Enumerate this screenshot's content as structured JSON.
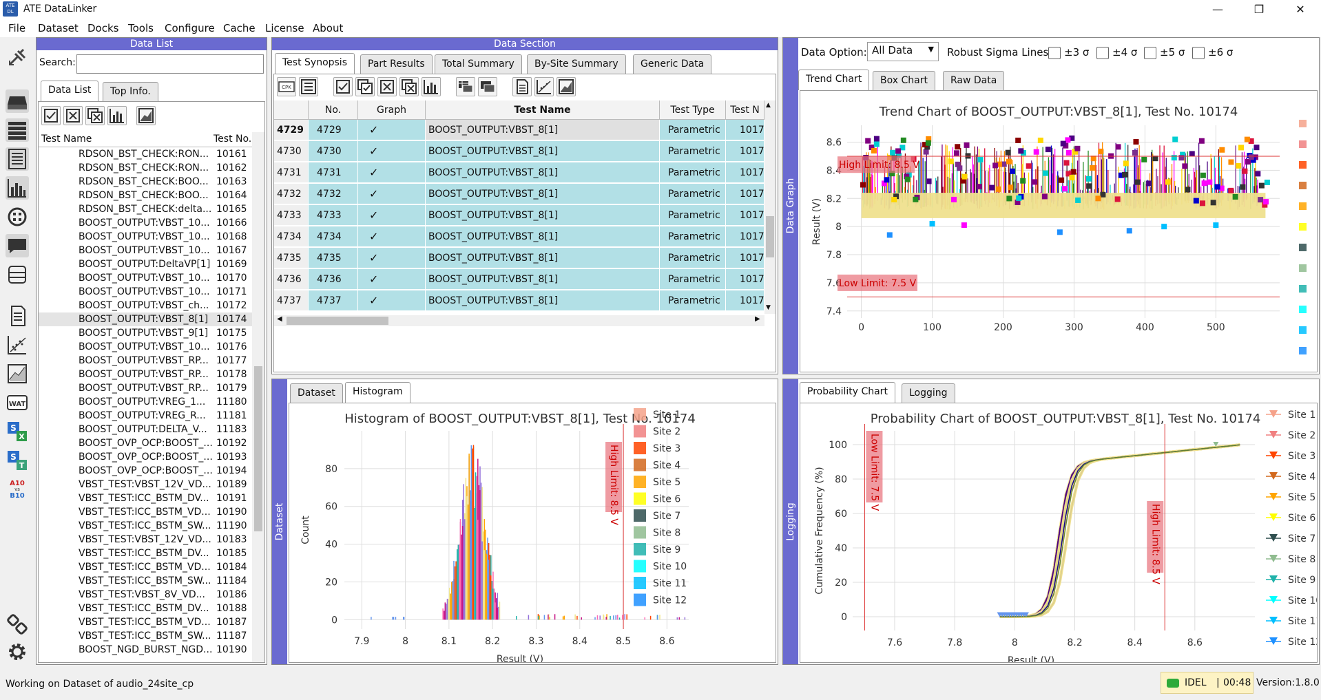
{
  "app": {
    "title": "ATE DataLinker",
    "icon_label": "ATE DL",
    "min_icon": "minimize-icon",
    "max_icon": "maximize-icon",
    "close_icon": "close-icon"
  },
  "menu": [
    "File",
    "Dataset",
    "Docks",
    "Tools",
    "Configure",
    "Cache",
    "License",
    "About"
  ],
  "toolbar_icons": [
    "plug-icon",
    "drive-icon",
    "list-icon",
    "table-icon",
    "bar-chart-icon",
    "globe-icon",
    "chat-icon",
    "wafer-icon",
    "document-icon",
    "scatter-icon",
    "line-chart-icon",
    "wat-icon",
    "sx-icon",
    "st-icon",
    "a10-b10-icon",
    "link-icon",
    "gear-icon"
  ],
  "toolbar_text": {
    "wat": "WAT",
    "sx_s": "S",
    "sx_x": "X",
    "st_s": "S",
    "st_t": "T",
    "a10": "A10",
    "vs": "vs",
    "b10": "B10"
  },
  "data_list": {
    "header": "Data List",
    "search_label": "Search:",
    "search_value": "",
    "tabs": [
      "Data List",
      "Top Info."
    ],
    "col_name": "Test Name",
    "col_no": "Test No.",
    "rows": [
      [
        "RDSON_BST_CHECK:RON...",
        "10161"
      ],
      [
        "RDSON_BST_CHECK:RON...",
        "10162"
      ],
      [
        "RDSON_BST_CHECK:BOO...",
        "10163"
      ],
      [
        "RDSON_BST_CHECK:BOO...",
        "10164"
      ],
      [
        "RDSON_BST_CHECK:delta...",
        "10165"
      ],
      [
        "BOOST_OUTPUT:VBST_10...",
        "10166"
      ],
      [
        "BOOST_OUTPUT:VBST_10...",
        "10168"
      ],
      [
        "BOOST_OUTPUT:VBST_10...",
        "10167"
      ],
      [
        "BOOST_OUTPUT:DeltaVP[1]",
        "10169"
      ],
      [
        "BOOST_OUTPUT:VBST_10...",
        "10170"
      ],
      [
        "BOOST_OUTPUT:VBST_10...",
        "10171"
      ],
      [
        "BOOST_OUTPUT:VBST_ch...",
        "10172"
      ],
      [
        "BOOST_OUTPUT:VBST_8[1]",
        "10174"
      ],
      [
        "BOOST_OUTPUT:VBST_9[1]",
        "10175"
      ],
      [
        "BOOST_OUTPUT:VBST_10...",
        "10176"
      ],
      [
        "BOOST_OUTPUT:VBST_RP...",
        "10177"
      ],
      [
        "BOOST_OUTPUT:VBST_RP...",
        "10178"
      ],
      [
        "BOOST_OUTPUT:VBST_RP...",
        "10179"
      ],
      [
        "BOOST_OUTPUT:VREG_1...",
        "11180"
      ],
      [
        "BOOST_OUTPUT:VREG_R...",
        "11181"
      ],
      [
        "BOOST_OUTPUT:DELTA_V...",
        "11183"
      ],
      [
        "BOOST_OVP_OCP:BOOST_...",
        "10192"
      ],
      [
        "BOOST_OVP_OCP:BOOST_...",
        "10193"
      ],
      [
        "BOOST_OVP_OCP:BOOST_...",
        "10194"
      ],
      [
        "VBST_TEST:VBST_12V_VD...",
        "10189"
      ],
      [
        "VBST_TEST:ICC_BSTM_DV...",
        "10191"
      ],
      [
        "VBST_TEST:ICC_BSTM_VD...",
        "10190"
      ],
      [
        "VBST_TEST:ICC_BSTM_SW...",
        "11190"
      ],
      [
        "VBST_TEST:VBST_12V_VD...",
        "10183"
      ],
      [
        "VBST_TEST:ICC_BSTM_DV...",
        "10185"
      ],
      [
        "VBST_TEST:ICC_BSTM_VD...",
        "10184"
      ],
      [
        "VBST_TEST:ICC_BSTM_SW...",
        "11184"
      ],
      [
        "VBST_TEST:VBST_8V_VD...",
        "10186"
      ],
      [
        "VBST_TEST:ICC_BSTM_DV...",
        "10188"
      ],
      [
        "VBST_TEST:ICC_BSTM_VD...",
        "10187"
      ],
      [
        "VBST_TEST:ICC_BSTM_SW...",
        "11187"
      ],
      [
        "BOOST_NGD_BURST_NGD...",
        "10190"
      ]
    ],
    "selected_index": 12
  },
  "data_section": {
    "header": "Data Section",
    "tabs": [
      "Test Synopsis",
      "Part Results",
      "Total Summary",
      "By-Site Summary",
      "Generic Data"
    ],
    "cols": [
      "No.",
      "Graph",
      "Test Name",
      "Test Type",
      "Test N"
    ],
    "rows": [
      {
        "idx": "4729",
        "no": "4729",
        "name": "BOOST_OUTPUT:VBST_8[1]",
        "type": "Parametric",
        "tno": "1017"
      },
      {
        "idx": "4730",
        "no": "4730",
        "name": "BOOST_OUTPUT:VBST_8[1]",
        "type": "Parametric",
        "tno": "1017"
      },
      {
        "idx": "4731",
        "no": "4731",
        "name": "BOOST_OUTPUT:VBST_8[1]",
        "type": "Parametric",
        "tno": "1017"
      },
      {
        "idx": "4732",
        "no": "4732",
        "name": "BOOST_OUTPUT:VBST_8[1]",
        "type": "Parametric",
        "tno": "1017"
      },
      {
        "idx": "4733",
        "no": "4733",
        "name": "BOOST_OUTPUT:VBST_8[1]",
        "type": "Parametric",
        "tno": "1017"
      },
      {
        "idx": "4734",
        "no": "4734",
        "name": "BOOST_OUTPUT:VBST_8[1]",
        "type": "Parametric",
        "tno": "1017"
      },
      {
        "idx": "4735",
        "no": "4735",
        "name": "BOOST_OUTPUT:VBST_8[1]",
        "type": "Parametric",
        "tno": "1017"
      },
      {
        "idx": "4736",
        "no": "4736",
        "name": "BOOST_OUTPUT:VBST_8[1]",
        "type": "Parametric",
        "tno": "1017"
      },
      {
        "idx": "4737",
        "no": "4737",
        "name": "BOOST_OUTPUT:VBST_8[1]",
        "type": "Parametric",
        "tno": "1017"
      }
    ],
    "cpk_label": "CPK"
  },
  "data_graph": {
    "vlabel": "Data Graph",
    "option_label": "Data Option:",
    "option_value": "All Data",
    "robust_label": "Robust Sigma Lines:",
    "sigma": [
      "±3 σ",
      "±4 σ",
      "±5 σ",
      "±6 σ"
    ],
    "tabs": [
      "Trend Chart",
      "Box Chart",
      "Raw Data"
    ]
  },
  "dataset_panel": {
    "vlabel": "Dataset",
    "tabs": [
      "Dataset",
      "Histogram"
    ]
  },
  "logging_panel": {
    "vlabel": "Logging",
    "tabs": [
      "Probability Chart",
      "Logging"
    ]
  },
  "sites": [
    "Site 1",
    "Site 2",
    "Site 3",
    "Site 4",
    "Site 5",
    "Site 6",
    "Site 7",
    "Site 8",
    "Site 9",
    "Site 10",
    "Site 11",
    "Site 12"
  ],
  "site_colors": [
    "#f5a28a",
    "#f08080",
    "#ff4500",
    "#d2691e",
    "#ffa500",
    "#ffff00",
    "#2f4f4f",
    "#8fbc8f",
    "#20b2aa",
    "#00ffff",
    "#00bfff",
    "#1e90ff"
  ],
  "trend": {
    "title": "Trend Chart of BOOST_OUTPUT:VBST_8[1], Test No. 10174",
    "ylabel": "Result (V)",
    "xticks": [
      "0",
      "100",
      "200",
      "300",
      "400",
      "500"
    ],
    "yticks": [
      "7.4",
      "7.6",
      "7.8",
      "8",
      "8.2",
      "8.4",
      "8.6"
    ],
    "high": "High Limit: 8.5 V",
    "low": "Low Limit: 7.5 V",
    "chart_data": {
      "type": "scatter",
      "xlim": [
        -20,
        590
      ],
      "ylim": [
        7.35,
        8.72
      ],
      "high_limit": 8.5,
      "low_limit": 7.5
    }
  },
  "hist": {
    "title": "Histogram of BOOST_OUTPUT:VBST_8[1], Test No. 10174",
    "xlabel": "Result (V)",
    "ylabel": "Count",
    "xticks": [
      "7.9",
      "8",
      "8.1",
      "8.2",
      "8.3",
      "8.4",
      "8.5",
      "8.6"
    ],
    "yticks": [
      "0",
      "20",
      "40",
      "60",
      "80"
    ],
    "high": "High Limit: 8.5 V",
    "chart_data": {
      "type": "bar",
      "xlim": [
        7.86,
        8.65
      ],
      "ylim": [
        -5,
        100
      ],
      "high_limit": 8.5
    }
  },
  "prob": {
    "title": "Probability Chart of BOOST_OUTPUT:VBST_8[1], Test No. 10174",
    "xlabel": "Result (V)",
    "ylabel": "Cumulative Frequency (%)",
    "xticks": [
      "7.6",
      "7.8",
      "8",
      "8.2",
      "8.4",
      "8.6"
    ],
    "yticks": [
      "0",
      "20",
      "40",
      "60",
      "80",
      "100"
    ],
    "high": "High Limit: 8.5 V",
    "low": "Low Limit: 7.5 V",
    "chart_data": {
      "type": "line",
      "xlim": [
        7.46,
        8.8
      ],
      "ylim": [
        -8,
        108
      ],
      "high_limit": 8.5,
      "low_limit": 7.5
    }
  },
  "status": {
    "text": "Working on Dataset of audio_24site_cp",
    "state": "IDEL",
    "time": "00:48",
    "version": "Version:1.8.0"
  }
}
